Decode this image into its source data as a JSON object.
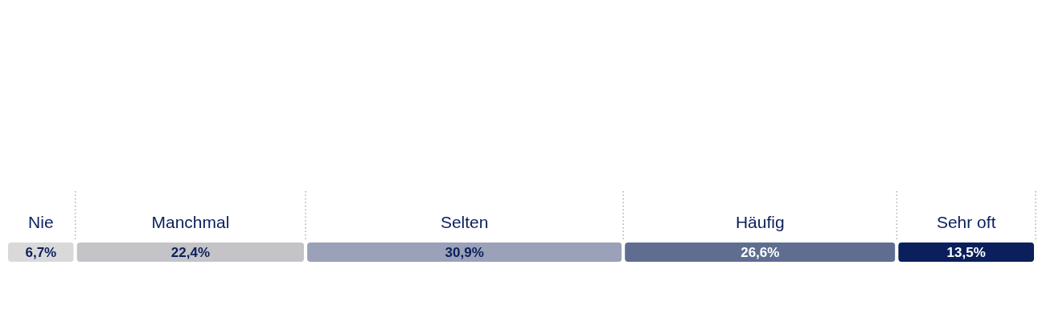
{
  "chart_data": {
    "type": "bar",
    "orientation": "horizontal",
    "stacked": true,
    "categories": [
      null
    ],
    "series": [
      {
        "name": "Nie",
        "color": "#d9d9d9",
        "values": [
          6.7
        ],
        "value_labels": [
          "6,7%"
        ]
      },
      {
        "name": "Manchmal",
        "color": "#c4c4c8",
        "values": [
          22.4
        ],
        "value_labels": [
          "22,4%"
        ]
      },
      {
        "name": "Selten",
        "color": "#9aa1b8",
        "values": [
          30.9
        ],
        "value_labels": [
          "30,9%"
        ]
      },
      {
        "name": "Häufig",
        "color": "#5f6e90",
        "values": [
          26.6
        ],
        "value_labels": [
          "26,6%"
        ]
      },
      {
        "name": "Sehr oft",
        "color": "#0a1f5c",
        "values": [
          13.5
        ],
        "value_labels": [
          "13,5%"
        ]
      }
    ]
  }
}
